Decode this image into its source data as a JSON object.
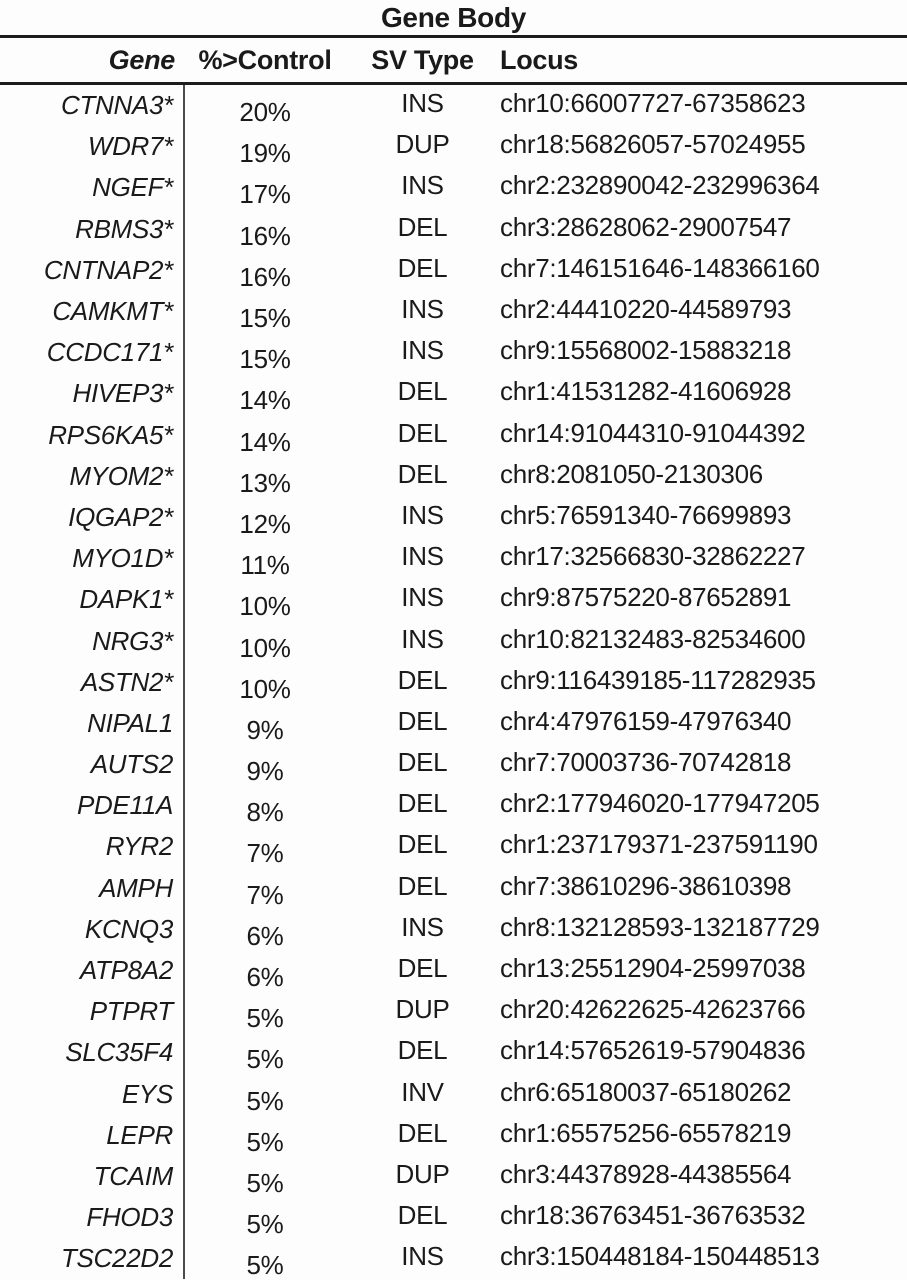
{
  "title": "Gene Body",
  "columns": {
    "gene": "Gene",
    "control": "%>Control",
    "sv_type": "SV Type",
    "locus": "Locus"
  },
  "colors": {
    "text": "#1a1a1a",
    "rule": "#1c1c1c",
    "divider": "#4a4a4a",
    "background": "#fdfdfd"
  },
  "rows": [
    {
      "gene": "CTNNA3*",
      "pct": "20%",
      "sv": "INS",
      "locus": "chr10:66007727-67358623"
    },
    {
      "gene": "WDR7*",
      "pct": "19%",
      "sv": "DUP",
      "locus": "chr18:56826057-57024955"
    },
    {
      "gene": "NGEF*",
      "pct": "17%",
      "sv": "INS",
      "locus": "chr2:232890042-232996364"
    },
    {
      "gene": "RBMS3*",
      "pct": "16%",
      "sv": "DEL",
      "locus": "chr3:28628062-29007547"
    },
    {
      "gene": "CNTNAP2*",
      "pct": "16%",
      "sv": "DEL",
      "locus": "chr7:146151646-148366160"
    },
    {
      "gene": "CAMKMT*",
      "pct": "15%",
      "sv": "INS",
      "locus": "chr2:44410220-44589793"
    },
    {
      "gene": "CCDC171*",
      "pct": "15%",
      "sv": "INS",
      "locus": "chr9:15568002-15883218"
    },
    {
      "gene": "HIVEP3*",
      "pct": "14%",
      "sv": "DEL",
      "locus": "chr1:41531282-41606928"
    },
    {
      "gene": "RPS6KA5*",
      "pct": "14%",
      "sv": "DEL",
      "locus": "chr14:91044310-91044392"
    },
    {
      "gene": "MYOM2*",
      "pct": "13%",
      "sv": "DEL",
      "locus": "chr8:2081050-2130306"
    },
    {
      "gene": "IQGAP2*",
      "pct": "12%",
      "sv": "INS",
      "locus": "chr5:76591340-76699893"
    },
    {
      "gene": "MYO1D*",
      "pct": "11%",
      "sv": "INS",
      "locus": "chr17:32566830-32862227"
    },
    {
      "gene": "DAPK1*",
      "pct": "10%",
      "sv": "INS",
      "locus": "chr9:87575220-87652891"
    },
    {
      "gene": "NRG3*",
      "pct": "10%",
      "sv": "INS",
      "locus": "chr10:82132483-82534600"
    },
    {
      "gene": "ASTN2*",
      "pct": "10%",
      "sv": "DEL",
      "locus": "chr9:116439185-117282935"
    },
    {
      "gene": "NIPAL1",
      "pct": "9%",
      "sv": "DEL",
      "locus": "chr4:47976159-47976340"
    },
    {
      "gene": "AUTS2",
      "pct": "9%",
      "sv": "DEL",
      "locus": "chr7:70003736-70742818"
    },
    {
      "gene": "PDE11A",
      "pct": "8%",
      "sv": "DEL",
      "locus": "chr2:177946020-177947205"
    },
    {
      "gene": "RYR2",
      "pct": "7%",
      "sv": "DEL",
      "locus": "chr1:237179371-237591190"
    },
    {
      "gene": "AMPH",
      "pct": "7%",
      "sv": "DEL",
      "locus": "chr7:38610296-38610398"
    },
    {
      "gene": "KCNQ3",
      "pct": "6%",
      "sv": "INS",
      "locus": "chr8:132128593-132187729"
    },
    {
      "gene": "ATP8A2",
      "pct": "6%",
      "sv": "DEL",
      "locus": "chr13:25512904-25997038"
    },
    {
      "gene": "PTPRT",
      "pct": "5%",
      "sv": "DUP",
      "locus": "chr20:42622625-42623766"
    },
    {
      "gene": "SLC35F4",
      "pct": "5%",
      "sv": "DEL",
      "locus": "chr14:57652619-57904836"
    },
    {
      "gene": "EYS",
      "pct": "5%",
      "sv": "INV",
      "locus": "chr6:65180037-65180262"
    },
    {
      "gene": "LEPR",
      "pct": "5%",
      "sv": "DEL",
      "locus": "chr1:65575256-65578219"
    },
    {
      "gene": "TCAIM",
      "pct": "5%",
      "sv": "DUP",
      "locus": "chr3:44378928-44385564"
    },
    {
      "gene": "FHOD3",
      "pct": "5%",
      "sv": "DEL",
      "locus": "chr18:36763451-36763532"
    },
    {
      "gene": "TSC22D2",
      "pct": "5%",
      "sv": "INS",
      "locus": "chr3:150448184-150448513"
    }
  ]
}
